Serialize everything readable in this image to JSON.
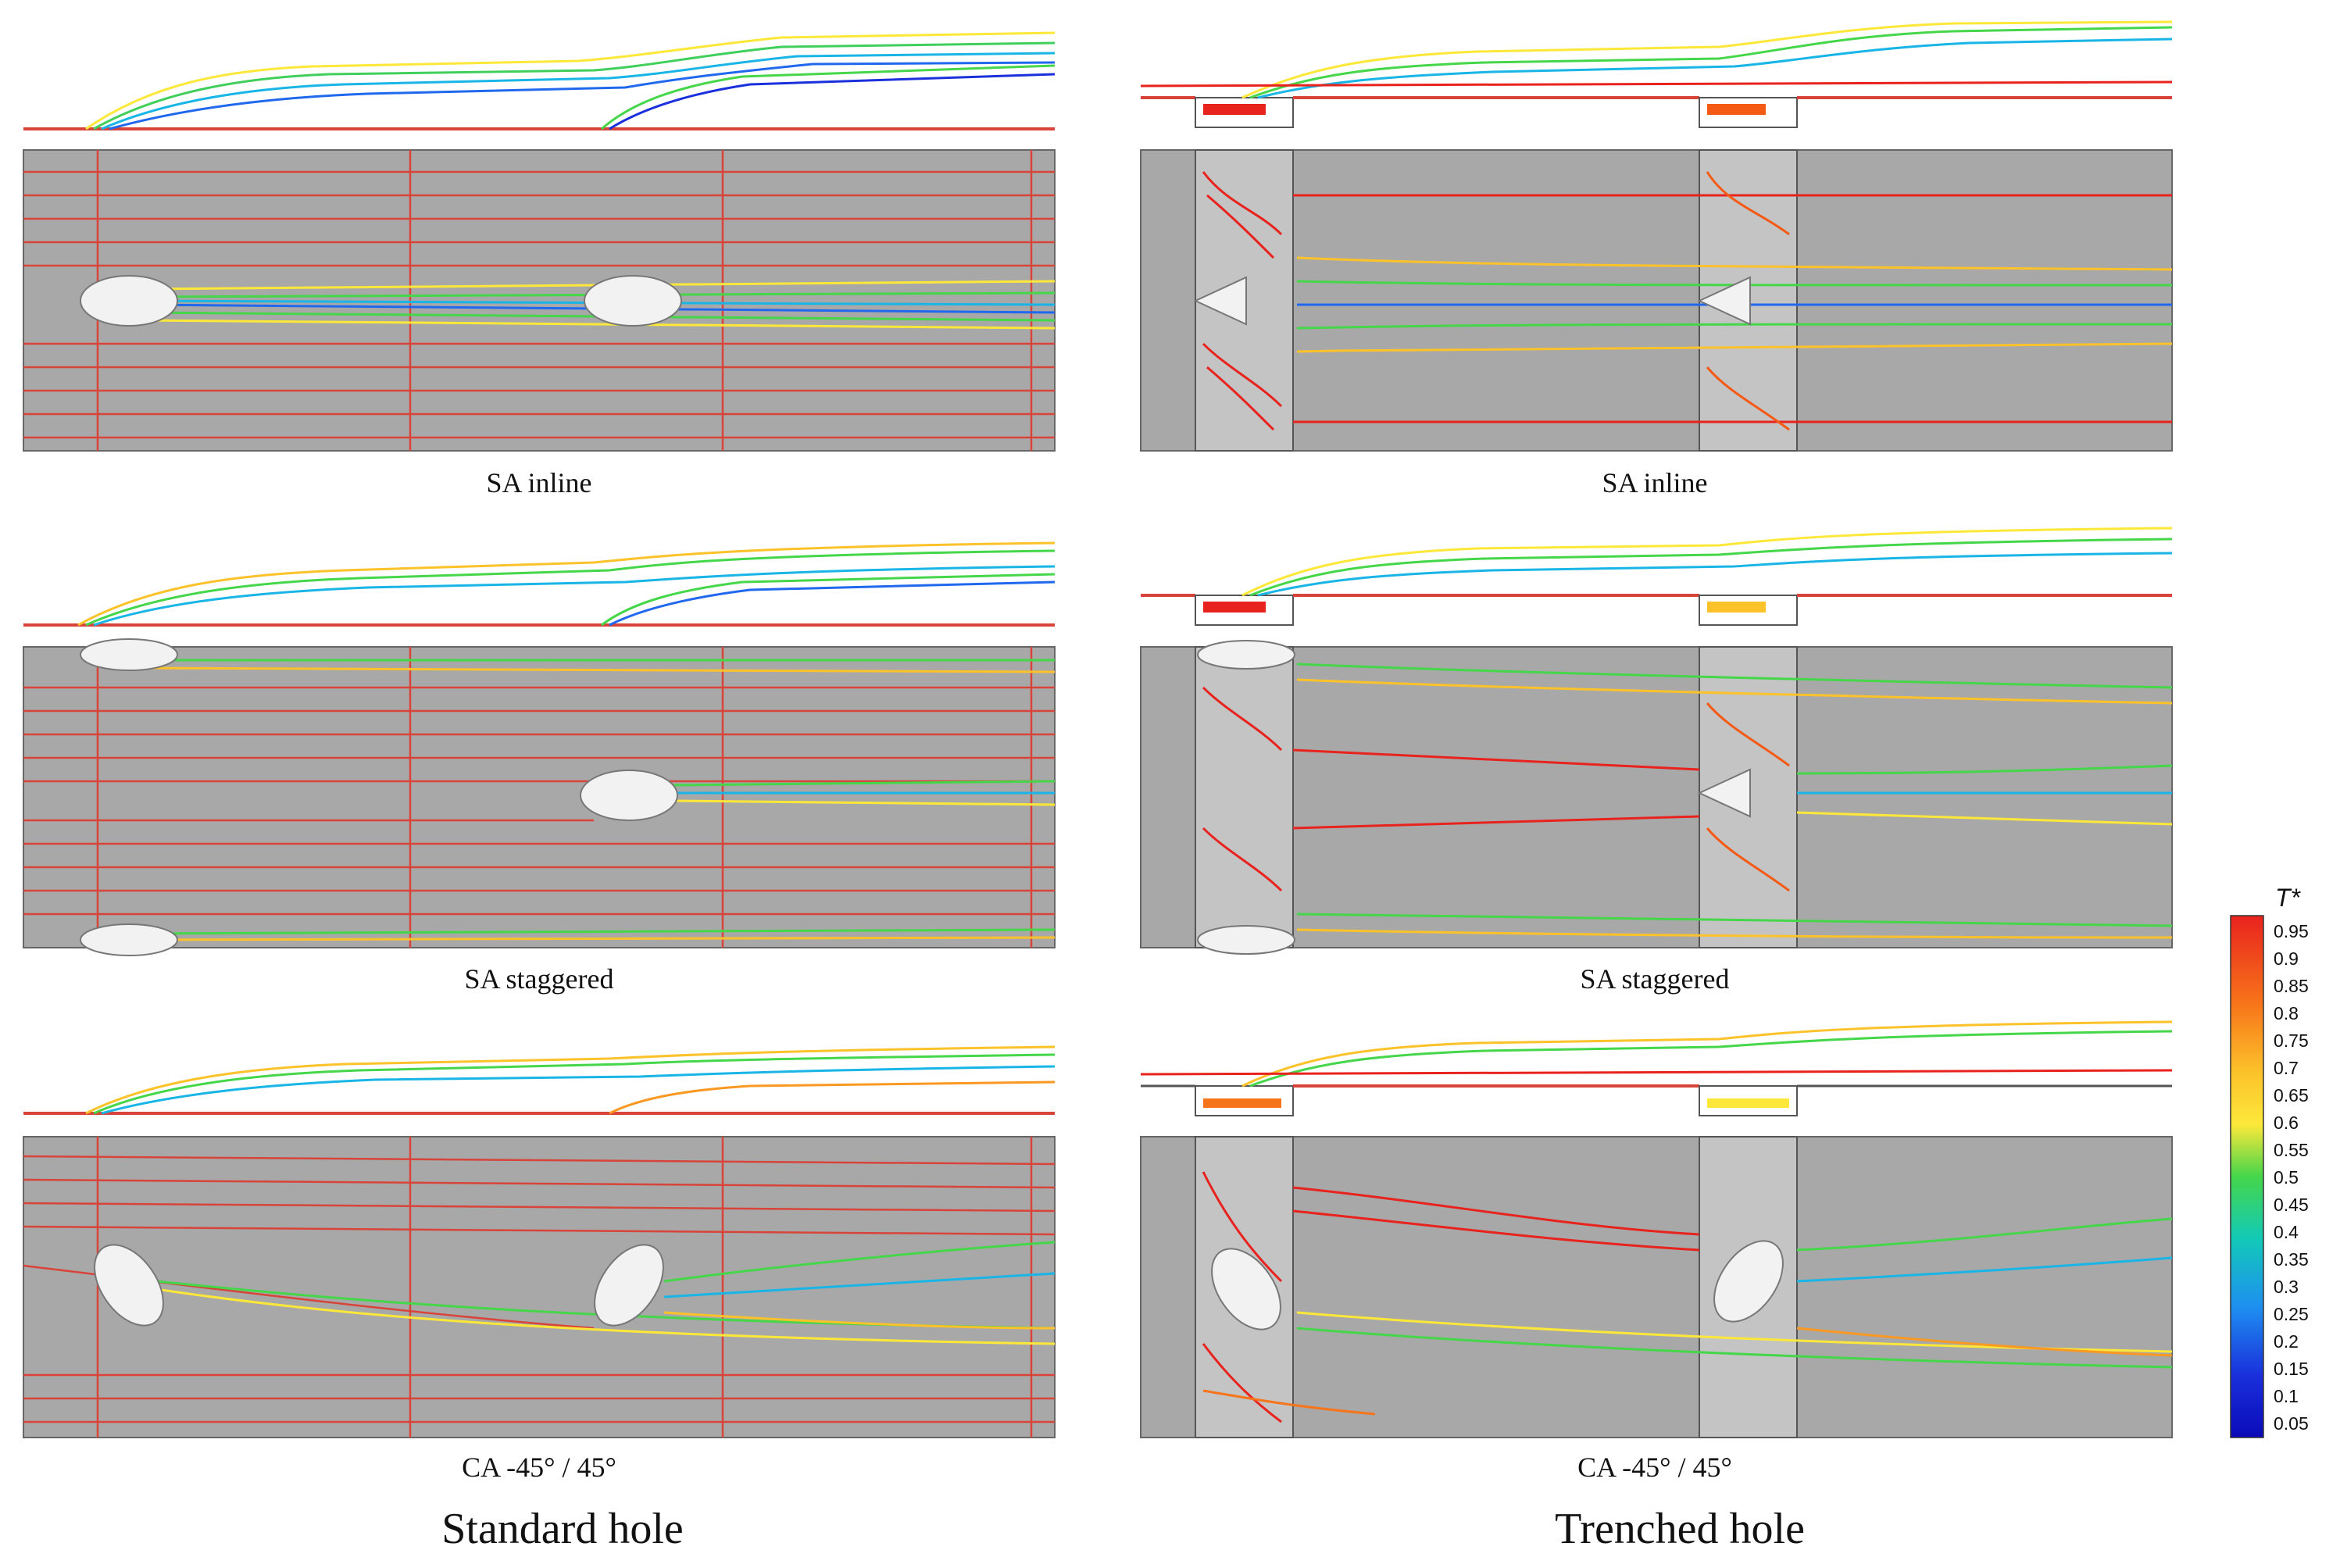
{
  "captions": {
    "sa_inline": "SA inline",
    "sa_staggered": "SA staggered",
    "ca": "CA -45° / 45°",
    "standard_hole": "Standard hole",
    "trenched_hole": "Trenched hole"
  },
  "colorbar": {
    "title": "T*",
    "ticks": [
      "0.95",
      "0.9",
      "0.85",
      "0.8",
      "0.75",
      "0.7",
      "0.65",
      "0.6",
      "0.55",
      "0.5",
      "0.45",
      "0.4",
      "0.35",
      "0.3",
      "0.25",
      "0.2",
      "0.15",
      "0.1",
      "0.05"
    ],
    "colors": [
      "#e8231e",
      "#f03f18",
      "#f45a14",
      "#f7751a",
      "#f99822",
      "#fcc22a",
      "#fde83a",
      "#cbe83a",
      "#8fde3c",
      "#45d64a",
      "#1ecf7e",
      "#12c9b8",
      "#18b5e6",
      "#1e8ff0",
      "#2068ee",
      "#1e4ae8",
      "#1a30dc",
      "#1418cc",
      "#0b0ab8"
    ]
  },
  "colors": {
    "surface_gray": "#a8a8a8",
    "freestream_red": "#d8443a",
    "hole_fill": "#f2f2f2"
  },
  "panels": [
    {
      "id": "std-sa-inline",
      "column": "standard",
      "arrangement": "inline"
    },
    {
      "id": "trench-sa-inline",
      "column": "trenched",
      "arrangement": "inline"
    },
    {
      "id": "std-sa-staggered",
      "column": "standard",
      "arrangement": "staggered"
    },
    {
      "id": "trench-sa-staggered",
      "column": "trenched",
      "arrangement": "staggered"
    },
    {
      "id": "std-ca",
      "column": "standard",
      "arrangement": "compound"
    },
    {
      "id": "trench-ca",
      "column": "trenched",
      "arrangement": "compound"
    }
  ]
}
